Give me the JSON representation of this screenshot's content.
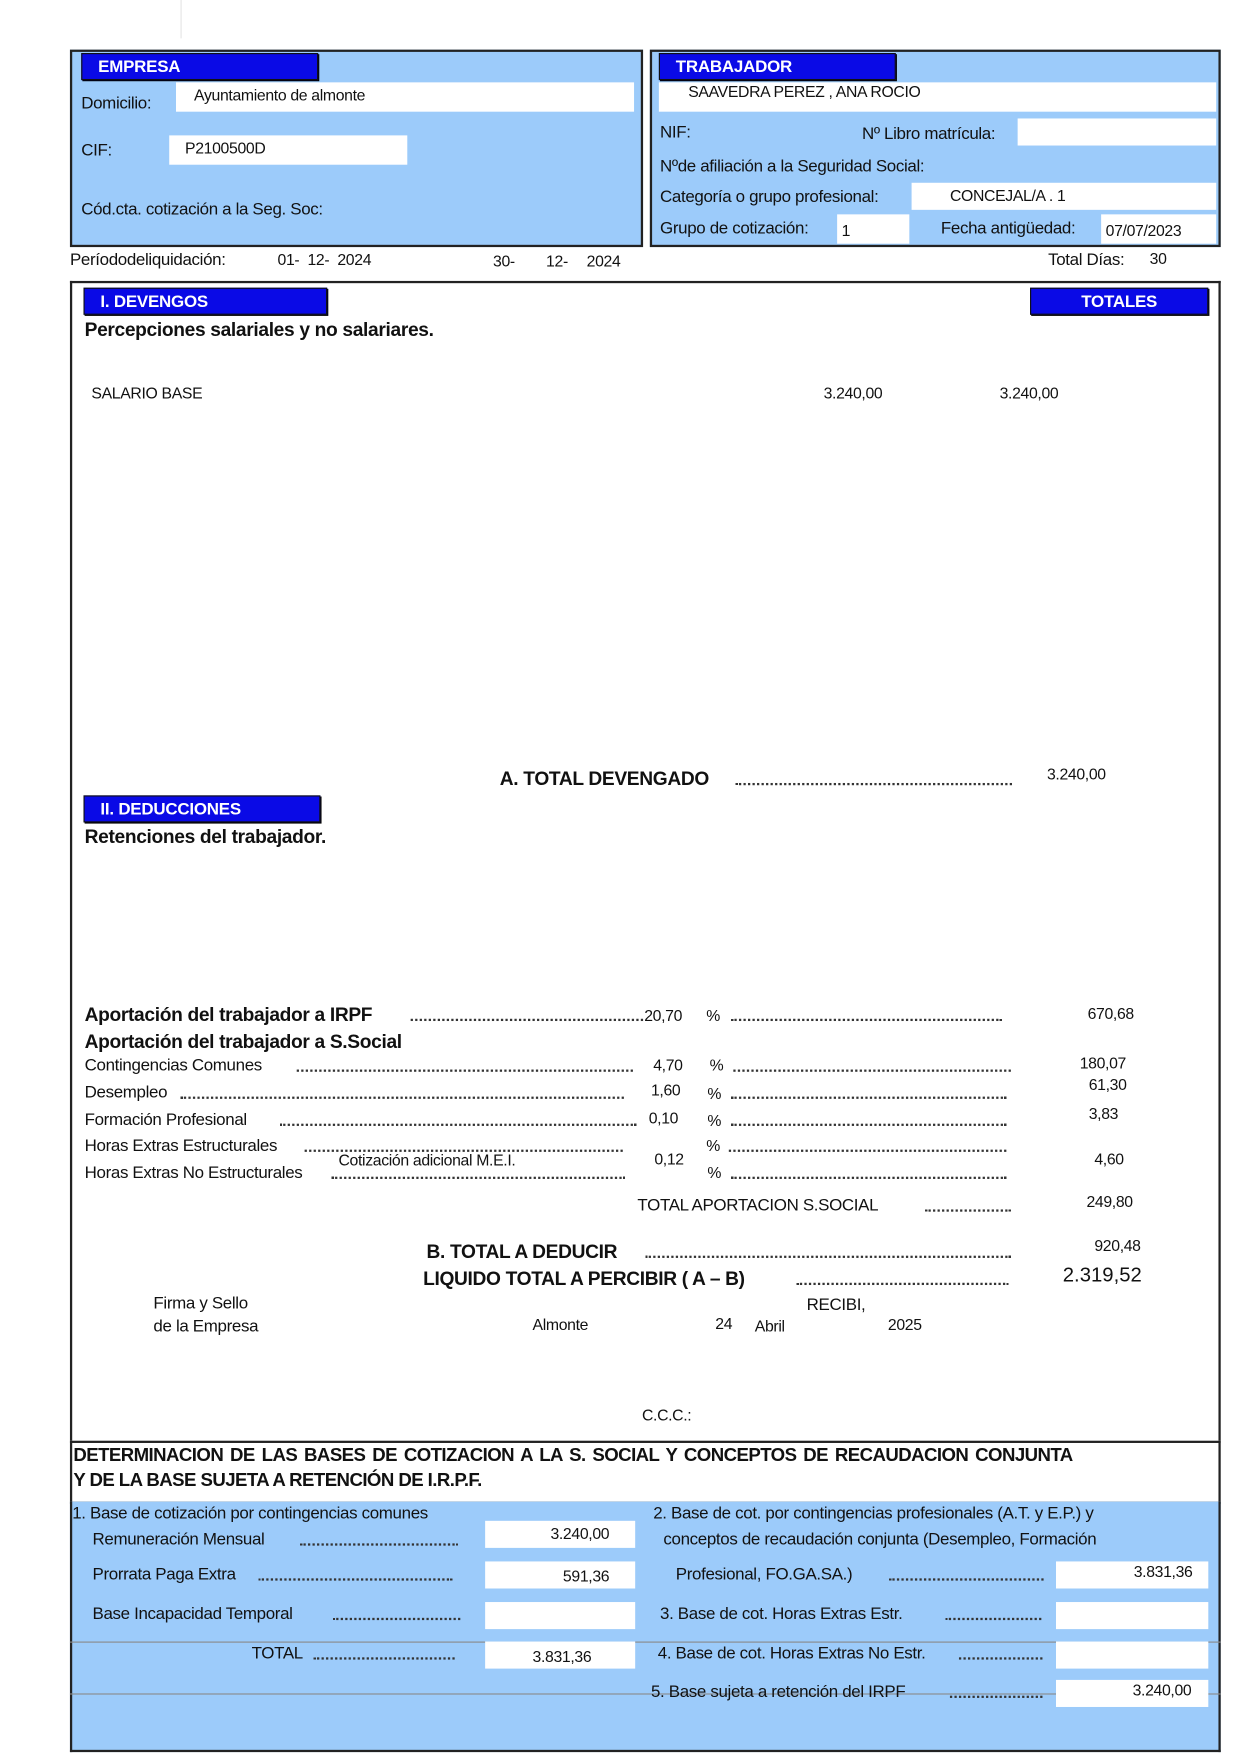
{
  "empresa": {
    "header": "EMPRESA",
    "domicilio_label": "Domicilio:",
    "domicilio": "Ayuntamiento de almonte",
    "cif_label": "CIF:",
    "cif": "P2100500D",
    "ccc_label": "Cód.cta. cotización a la Seg. Soc:"
  },
  "trabajador": {
    "header": "TRABAJADOR",
    "nombre": "SAAVEDRA PEREZ , ANA ROCIO",
    "nif_label": "NIF:",
    "libro_label": "Nº Libro matrícula:",
    "afiliacion_label": "Nºde afiliación a la Seguridad Social:",
    "categoria_label": "Categoría o grupo profesional:",
    "categoria": "CONCEJAL/A . 1",
    "grupo_label": "Grupo de cotización:",
    "grupo": "1",
    "antiguedad_label": "Fecha antigüedad:",
    "antiguedad": "07/07/2023"
  },
  "periodo": {
    "label": "Períododeliquidación:",
    "desde": "01-  12-  2024",
    "hasta_dia": "30-",
    "hasta_mes": "12-",
    "hasta_anio": "2024",
    "total_dias_label": "Total Días:",
    "total_dias": "30"
  },
  "devengos": {
    "header": "I. DEVENGOS",
    "totales_header": "TOTALES",
    "subtitle": "Percepciones salariales y no salariares.",
    "items": [
      {
        "concepto": "SALARIO BASE",
        "importe": "3.240,00",
        "total": "3.240,00"
      }
    ],
    "total_label": "A. TOTAL  DEVENGADO",
    "total": "3.240,00"
  },
  "deducciones": {
    "header": "II. DEDUCCIONES",
    "subtitle": "Retenciones del trabajador.",
    "irpf_label": "Aportación del trabajador a IRPF",
    "irpf_pct": "20,70",
    "irpf_importe": "670,68",
    "ss_label": "Aportación del trabajador a S.Social",
    "pct_sign": "%",
    "contingencias_label": "Contingencias Comunes",
    "contingencias_pct": "4,70",
    "contingencias_importe": "180,07",
    "desempleo_label": "Desempleo",
    "desempleo_pct": "1,60",
    "desempleo_importe": "61,30",
    "formacion_label": "Formación  Profesional",
    "formacion_pct": "0,10",
    "formacion_importe": "3,83",
    "he_estr_label": "Horas Extras Estructurales",
    "mei_label": "Cotización adicional M.E.I.",
    "mei_pct": "0,12",
    "mei_importe": "4,60",
    "he_noestr_label": "Horas Extras No  Estructurales",
    "total_ss_label": "TOTAL APORTACION S.SOCIAL",
    "total_ss": "249,80",
    "total_deducir_label": "B. TOTAL  A  DEDUCIR",
    "total_deducir": "920,48",
    "liquido_label": "LIQUIDO TOTAL A PERCIBIR ( A – B)",
    "liquido": "2.319,52"
  },
  "firma": {
    "firma1": "Firma y Sello",
    "firma2": "de la Empresa",
    "recibi": "RECIBI,",
    "lugar": "Almonte",
    "dia": "24",
    "mes": "Abril",
    "anio": "2025",
    "ccc": "C.C.C.:"
  },
  "bases": {
    "title1": "DETERMINACION DE LAS BASES DE COTIZACION A LA S. SOCIAL Y CONCEPTOS DE RECAUDACION CONJUNTA",
    "title2": "Y DE LA BASE SUJETA A RETENCIÓN DE I.R.P.F.",
    "b1_label": "1. Base de cotización por contingencias comunes",
    "remuneracion_label": "Remuneración Mensual",
    "remuneracion": "3.240,00",
    "prorrata_label": "Prorrata Paga Extra",
    "prorrata": "591,36",
    "it_label": "Base Incapacidad Temporal",
    "it": "",
    "total_label": "TOTAL",
    "total": "3.831,36",
    "b2_label1": "2. Base de cot. por contingencias profesionales (A.T. y E.P.) y",
    "b2_label2": "conceptos de recaudación conjunta (Desempleo, Formación",
    "b2_label3": "Profesional, FO.GA.SA.)",
    "b2": "3.831,36",
    "b3_label": "3. Base  de cot. Horas Extras Estr.",
    "b3": "",
    "b4_label": "4. Base de cot. Horas Extras No Estr.",
    "b4": "",
    "b5_label": "5. Base sujeta a retención del IRPF",
    "b5": "3.240,00"
  },
  "colors": {
    "panel": "#9ccbfa",
    "header": "#0a0ae6"
  }
}
